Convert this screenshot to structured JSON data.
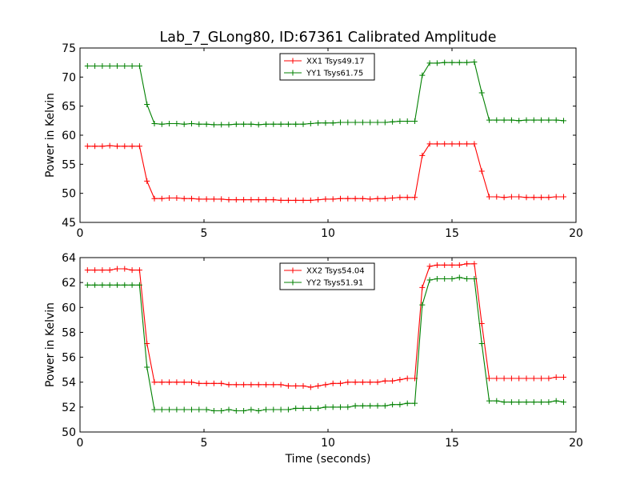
{
  "figure": {
    "title": "Lab_7_GLong80, ID:67361 Calibrated Amplitude",
    "xlabel": "Time (seconds)"
  },
  "chart_data": [
    {
      "type": "line",
      "ylabel": "Power in Kelvin",
      "xlim": [
        0,
        20
      ],
      "ylim": [
        45,
        75
      ],
      "xticks": [
        0,
        5,
        10,
        15,
        20
      ],
      "yticks": [
        45,
        50,
        55,
        60,
        65,
        70,
        75
      ],
      "grid": false,
      "legend_position": "top-center",
      "x": [
        0.3,
        0.6,
        0.9,
        1.2,
        1.5,
        1.8,
        2.1,
        2.4,
        2.7,
        3.0,
        3.3,
        3.6,
        3.9,
        4.2,
        4.5,
        4.8,
        5.1,
        5.4,
        5.7,
        6.0,
        6.3,
        6.6,
        6.9,
        7.2,
        7.5,
        7.8,
        8.1,
        8.4,
        8.7,
        9.0,
        9.3,
        9.6,
        9.9,
        10.2,
        10.5,
        10.8,
        11.1,
        11.4,
        11.7,
        12.0,
        12.3,
        12.6,
        12.9,
        13.2,
        13.5,
        13.8,
        14.1,
        14.4,
        14.7,
        15.0,
        15.3,
        15.6,
        15.9,
        16.2,
        16.5,
        16.8,
        17.1,
        17.4,
        17.7,
        18.0,
        18.3,
        18.6,
        18.9,
        19.2,
        19.5
      ],
      "series": [
        {
          "name": "XX1 Tsys49.17",
          "color": "#ff0000",
          "values": [
            58.1,
            58.1,
            58.1,
            58.2,
            58.1,
            58.1,
            58.1,
            58.1,
            52.1,
            49.1,
            49.1,
            49.2,
            49.2,
            49.1,
            49.1,
            49.0,
            49.0,
            49.0,
            49.0,
            48.9,
            48.9,
            48.9,
            48.9,
            48.9,
            48.9,
            48.9,
            48.8,
            48.8,
            48.8,
            48.8,
            48.8,
            48.9,
            49.0,
            49.0,
            49.1,
            49.1,
            49.1,
            49.1,
            49.0,
            49.1,
            49.1,
            49.2,
            49.3,
            49.3,
            49.3,
            56.5,
            58.5,
            58.5,
            58.5,
            58.5,
            58.5,
            58.5,
            58.5,
            53.8,
            49.4,
            49.4,
            49.3,
            49.4,
            49.4,
            49.3,
            49.3,
            49.3,
            49.3,
            49.4,
            49.4
          ]
        },
        {
          "name": "YY1 Tsys61.75",
          "color": "#008000",
          "values": [
            71.9,
            71.9,
            71.9,
            71.9,
            71.9,
            71.9,
            71.9,
            71.9,
            65.3,
            62.0,
            61.9,
            62.0,
            62.0,
            61.9,
            62.0,
            61.9,
            61.9,
            61.8,
            61.8,
            61.8,
            61.9,
            61.9,
            61.9,
            61.8,
            61.9,
            61.9,
            61.9,
            61.9,
            61.9,
            61.9,
            62.0,
            62.1,
            62.1,
            62.1,
            62.2,
            62.2,
            62.2,
            62.2,
            62.2,
            62.2,
            62.2,
            62.3,
            62.4,
            62.4,
            62.4,
            70.3,
            72.4,
            72.4,
            72.5,
            72.5,
            72.5,
            72.5,
            72.6,
            67.3,
            62.6,
            62.6,
            62.6,
            62.6,
            62.5,
            62.6,
            62.6,
            62.6,
            62.6,
            62.6,
            62.5
          ]
        }
      ]
    },
    {
      "type": "line",
      "ylabel": "Power in Kelvin",
      "xlim": [
        0,
        20
      ],
      "ylim": [
        50,
        64
      ],
      "xticks": [
        0,
        5,
        10,
        15,
        20
      ],
      "yticks": [
        50,
        52,
        54,
        56,
        58,
        60,
        62,
        64
      ],
      "grid": false,
      "legend_position": "top-center",
      "x": [
        0.3,
        0.6,
        0.9,
        1.2,
        1.5,
        1.8,
        2.1,
        2.4,
        2.7,
        3.0,
        3.3,
        3.6,
        3.9,
        4.2,
        4.5,
        4.8,
        5.1,
        5.4,
        5.7,
        6.0,
        6.3,
        6.6,
        6.9,
        7.2,
        7.5,
        7.8,
        8.1,
        8.4,
        8.7,
        9.0,
        9.3,
        9.6,
        9.9,
        10.2,
        10.5,
        10.8,
        11.1,
        11.4,
        11.7,
        12.0,
        12.3,
        12.6,
        12.9,
        13.2,
        13.5,
        13.8,
        14.1,
        14.4,
        14.7,
        15.0,
        15.3,
        15.6,
        15.9,
        16.2,
        16.5,
        16.8,
        17.1,
        17.4,
        17.7,
        18.0,
        18.3,
        18.6,
        18.9,
        19.2,
        19.5
      ],
      "series": [
        {
          "name": "XX2 Tsys54.04",
          "color": "#ff0000",
          "values": [
            63.0,
            63.0,
            63.0,
            63.0,
            63.1,
            63.1,
            63.0,
            63.0,
            57.1,
            54.0,
            54.0,
            54.0,
            54.0,
            54.0,
            54.0,
            53.9,
            53.9,
            53.9,
            53.9,
            53.8,
            53.8,
            53.8,
            53.8,
            53.8,
            53.8,
            53.8,
            53.8,
            53.7,
            53.7,
            53.7,
            53.6,
            53.7,
            53.8,
            53.9,
            53.9,
            54.0,
            54.0,
            54.0,
            54.0,
            54.0,
            54.1,
            54.1,
            54.2,
            54.3,
            54.3,
            61.6,
            63.3,
            63.4,
            63.4,
            63.4,
            63.4,
            63.5,
            63.5,
            58.7,
            54.3,
            54.3,
            54.3,
            54.3,
            54.3,
            54.3,
            54.3,
            54.3,
            54.3,
            54.4,
            54.4
          ]
        },
        {
          "name": "YY2 Tsys51.91",
          "color": "#008000",
          "values": [
            61.8,
            61.8,
            61.8,
            61.8,
            61.8,
            61.8,
            61.8,
            61.8,
            55.2,
            51.8,
            51.8,
            51.8,
            51.8,
            51.8,
            51.8,
            51.8,
            51.8,
            51.7,
            51.7,
            51.8,
            51.7,
            51.7,
            51.8,
            51.7,
            51.8,
            51.8,
            51.8,
            51.8,
            51.9,
            51.9,
            51.9,
            51.9,
            52.0,
            52.0,
            52.0,
            52.0,
            52.1,
            52.1,
            52.1,
            52.1,
            52.1,
            52.2,
            52.2,
            52.3,
            52.3,
            60.2,
            62.2,
            62.3,
            62.3,
            62.3,
            62.4,
            62.3,
            62.3,
            57.1,
            52.5,
            52.5,
            52.4,
            52.4,
            52.4,
            52.4,
            52.4,
            52.4,
            52.4,
            52.5,
            52.4
          ]
        }
      ]
    }
  ]
}
